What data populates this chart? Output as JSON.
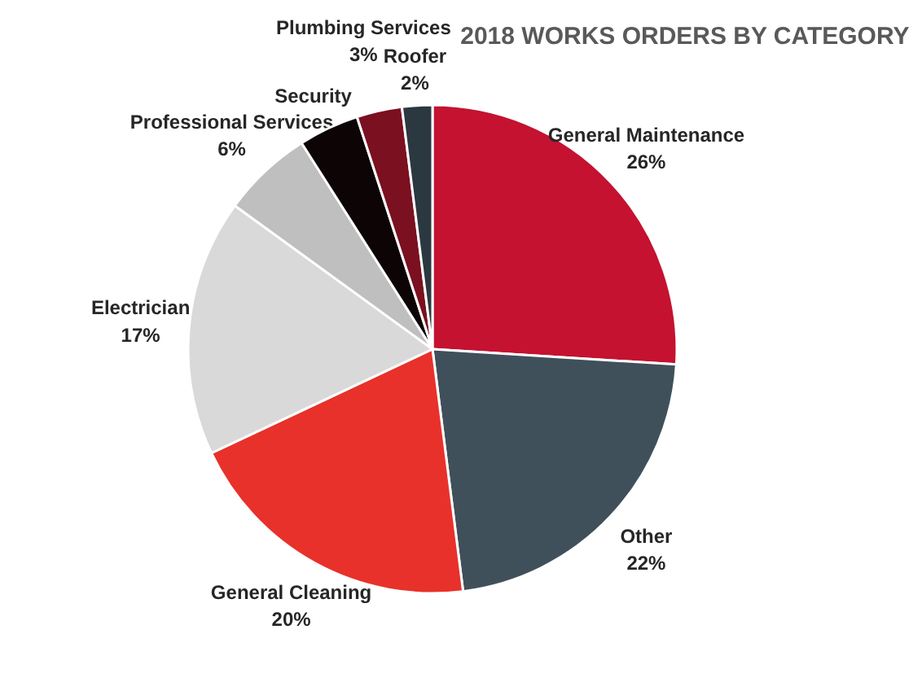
{
  "chart_data": {
    "type": "pie",
    "title": "2018 WORKS ORDERS BY CATEGORY",
    "categories": [
      "General Maintenance",
      "Other",
      "General Cleaning",
      "Electrician",
      "Professional Services",
      "Security",
      "Plumbing Services",
      "Roofer"
    ],
    "values": [
      26,
      22,
      20,
      17,
      6,
      4,
      3,
      2
    ],
    "value_labels": [
      "26%",
      "22%",
      "20%",
      "17%",
      "6%",
      null,
      "3%",
      "2%"
    ],
    "colors": [
      "#c41230",
      "#3f505b",
      "#e8312a",
      "#d9d9d9",
      "#bfbfbf",
      "#0d0406",
      "#7a1020",
      "#2b3840"
    ]
  }
}
